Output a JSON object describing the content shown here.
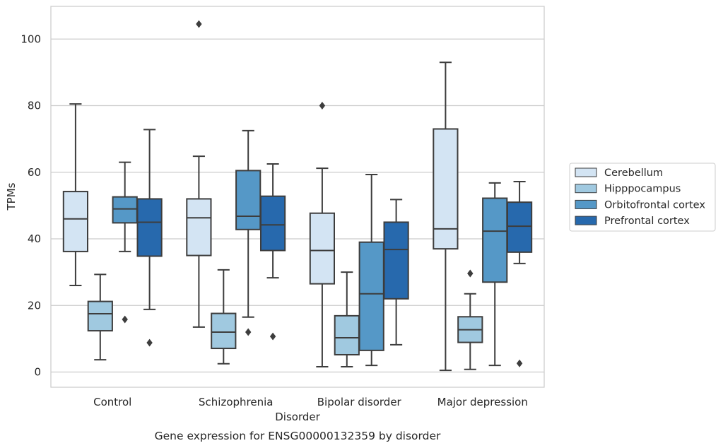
{
  "chart_data": {
    "type": "boxplot",
    "caption": "Gene expression for ENSG00000132359 by disorder",
    "xlabel": "Disorder",
    "ylabel": "TPMs",
    "ylim": [
      -4.5,
      110
    ],
    "yticks": [
      0,
      20,
      40,
      60,
      80,
      100
    ],
    "grid": "horizontal",
    "legend_position": "right",
    "categories": [
      "Control",
      "Schizophrenia",
      "Bipolar disorder",
      "Major depression"
    ],
    "series": [
      {
        "name": "Cerebellum",
        "color": "#d3e4f3",
        "boxes": [
          {
            "whisker_low": 26,
            "q1": 36.2,
            "median": 46,
            "q3": 54.2,
            "whisker_high": 80.5,
            "outliers": []
          },
          {
            "whisker_low": 13.5,
            "q1": 35,
            "median": 46.3,
            "q3": 52,
            "whisker_high": 64.8,
            "outliers": [
              104.5
            ]
          },
          {
            "whisker_low": 1.6,
            "q1": 26.5,
            "median": 36.5,
            "q3": 47.7,
            "whisker_high": 61.2,
            "outliers": [
              80
            ]
          },
          {
            "whisker_low": 0.5,
            "q1": 37,
            "median": 43,
            "q3": 73,
            "whisker_high": 93,
            "outliers": []
          }
        ]
      },
      {
        "name": "Hipppocampus",
        "color": "#a0c9e0",
        "boxes": [
          {
            "whisker_low": 3.7,
            "q1": 12.4,
            "median": 17.5,
            "q3": 21.2,
            "whisker_high": 29.3,
            "outliers": []
          },
          {
            "whisker_low": 2.5,
            "q1": 7.1,
            "median": 12,
            "q3": 17.6,
            "whisker_high": 30.7,
            "outliers": []
          },
          {
            "whisker_low": 1.6,
            "q1": 5.2,
            "median": 10.3,
            "q3": 16.9,
            "whisker_high": 30,
            "outliers": []
          },
          {
            "whisker_low": 0.8,
            "q1": 8.9,
            "median": 12.7,
            "q3": 16.6,
            "whisker_high": 23.5,
            "outliers": [
              29.6
            ]
          }
        ]
      },
      {
        "name": "Orbitofrontal cortex",
        "color": "#5598c7",
        "boxes": [
          {
            "whisker_low": 36.2,
            "q1": 44.8,
            "median": 49,
            "q3": 52.6,
            "whisker_high": 63,
            "outliers": [
              15.8
            ]
          },
          {
            "whisker_low": 16.5,
            "q1": 42.8,
            "median": 46.8,
            "q3": 60.5,
            "whisker_high": 72.5,
            "outliers": [
              12
            ]
          },
          {
            "whisker_low": 2,
            "q1": 6.5,
            "median": 23.5,
            "q3": 39,
            "whisker_high": 59.3,
            "outliers": []
          },
          {
            "whisker_low": 2,
            "q1": 27,
            "median": 42.3,
            "q3": 52.2,
            "whisker_high": 56.8,
            "outliers": []
          }
        ]
      },
      {
        "name": "Prefrontal cortex",
        "color": "#2769ad",
        "boxes": [
          {
            "whisker_low": 18.8,
            "q1": 34.8,
            "median": 45,
            "q3": 52,
            "whisker_high": 72.8,
            "outliers": [
              8.8
            ]
          },
          {
            "whisker_low": 28.3,
            "q1": 36.5,
            "median": 44.2,
            "q3": 52.8,
            "whisker_high": 62.5,
            "outliers": [
              10.7
            ]
          },
          {
            "whisker_low": 8.2,
            "q1": 22,
            "median": 36.8,
            "q3": 45,
            "whisker_high": 51.8,
            "outliers": []
          },
          {
            "whisker_low": 32.6,
            "q1": 36,
            "median": 43.8,
            "q3": 51,
            "whisker_high": 57.2,
            "outliers": [
              2.6
            ]
          }
        ]
      }
    ]
  }
}
